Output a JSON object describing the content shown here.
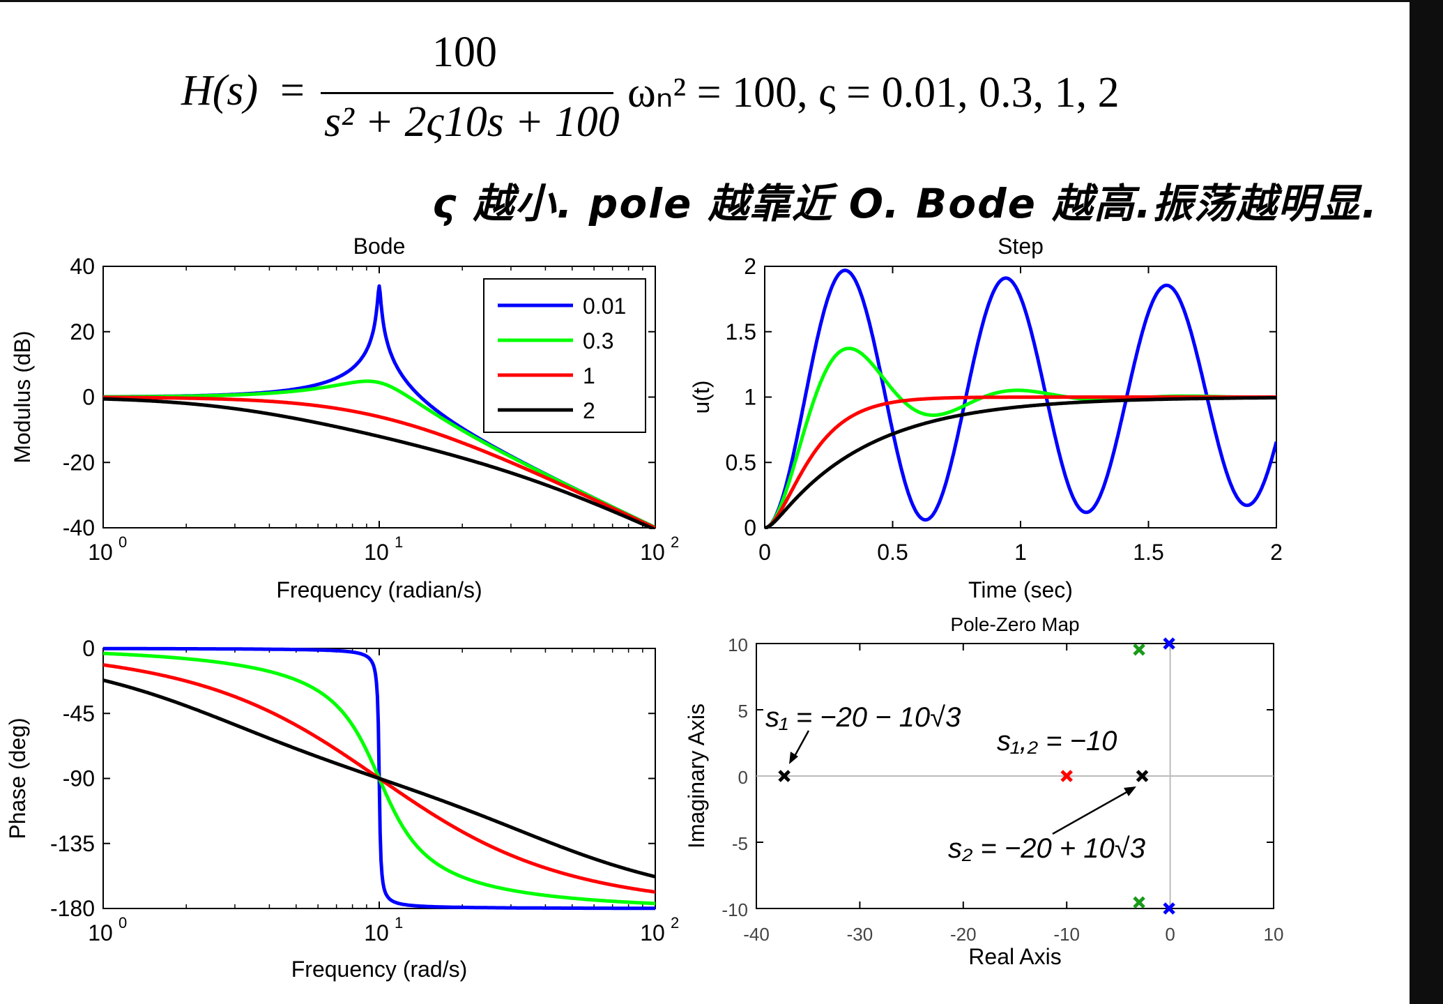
{
  "formula": {
    "lhs": "H(s)",
    "numerator": "100",
    "denominator": "s² + 2ς10s + 100",
    "params": "ωₙ² = 100,  ς = 0.01, 0.3, 1, 2"
  },
  "note": "ς 越小. pole 越靠近 O. Bode 越高.振荡越明显.",
  "chart_data": [
    {
      "type": "line",
      "title": "Bode",
      "xlabel": "Frequency (radian/s)",
      "ylabel": "Modulus (dB)",
      "xscale": "log",
      "xlim": [
        1,
        100
      ],
      "ylim": [
        -40,
        40
      ],
      "xticks": [
        1,
        10,
        100
      ],
      "xtick_labels": [
        "10",
        "10",
        "10"
      ],
      "xtick_exponents": [
        "0",
        "1",
        "2"
      ],
      "yticks": [
        40,
        20,
        0,
        -20,
        -40
      ],
      "legend_position": "top-right",
      "legend": [
        "0.01",
        "0.3",
        "1",
        "2"
      ],
      "series": [
        {
          "name": "0.01",
          "color": "#0000ff",
          "zeta": 0.01
        },
        {
          "name": "0.3",
          "color": "#00ff00",
          "zeta": 0.3
        },
        {
          "name": "1",
          "color": "#ff0000",
          "zeta": 1
        },
        {
          "name": "2",
          "color": "#000000",
          "zeta": 2
        }
      ]
    },
    {
      "type": "line",
      "title": "Step",
      "xlabel": "Time (sec)",
      "ylabel": "u(t)",
      "xlim": [
        0,
        2
      ],
      "ylim": [
        0,
        2
      ],
      "xticks": [
        0,
        0.5,
        1,
        1.5,
        2
      ],
      "xtick_labels": [
        "0",
        "0.5",
        "1",
        "1.5",
        "2"
      ],
      "yticks": [
        0,
        0.5,
        1,
        1.5,
        2
      ],
      "ytick_labels": [
        "0",
        "0.5",
        "1",
        "1.5",
        "2"
      ],
      "series": [
        {
          "color": "#0000ff",
          "zeta": 0.01
        },
        {
          "color": "#00ff00",
          "zeta": 0.3
        },
        {
          "color": "#ff0000",
          "zeta": 1
        },
        {
          "color": "#000000",
          "zeta": 2
        }
      ]
    },
    {
      "type": "line",
      "title": "",
      "xlabel": "Frequency (rad/s)",
      "ylabel": "Phase (deg)",
      "xscale": "log",
      "xlim": [
        1,
        100
      ],
      "ylim": [
        -180,
        0
      ],
      "xticks": [
        1,
        10,
        100
      ],
      "xtick_labels": [
        "10",
        "10",
        "10"
      ],
      "xtick_exponents": [
        "0",
        "1",
        "2"
      ],
      "yticks": [
        0,
        -45,
        -90,
        -135,
        -180
      ],
      "series": [
        {
          "color": "#0000ff",
          "zeta": 0.01
        },
        {
          "color": "#00ff00",
          "zeta": 0.3
        },
        {
          "color": "#ff0000",
          "zeta": 1
        },
        {
          "color": "#000000",
          "zeta": 2
        }
      ]
    },
    {
      "type": "scatter",
      "title": "Pole-Zero Map",
      "xlabel": "Real Axis",
      "ylabel": "Imaginary Axis",
      "xlim": [
        -40,
        10
      ],
      "ylim": [
        -10,
        10
      ],
      "xticks": [
        -40,
        -30,
        -20,
        -10,
        0,
        10
      ],
      "yticks": [
        10,
        5,
        0,
        -5,
        -10
      ],
      "poles": [
        {
          "x": -0.1,
          "y": 10,
          "color": "#0000ff"
        },
        {
          "x": -0.1,
          "y": -10,
          "color": "#0000ff"
        },
        {
          "x": -3,
          "y": 9.54,
          "color": "#1a9a1a"
        },
        {
          "x": -3,
          "y": -9.54,
          "color": "#1a9a1a"
        },
        {
          "x": -10,
          "y": 0,
          "color": "#ff0000"
        },
        {
          "x": -37.3,
          "y": 0,
          "color": "#000000"
        },
        {
          "x": -2.7,
          "y": 0,
          "color": "#000000"
        }
      ],
      "annotations": [
        {
          "text": "s₁ = −20 − 10√3"
        },
        {
          "text": "s₁,₂ = −10"
        },
        {
          "text": "s₂ = −20 + 10√3"
        }
      ]
    }
  ]
}
